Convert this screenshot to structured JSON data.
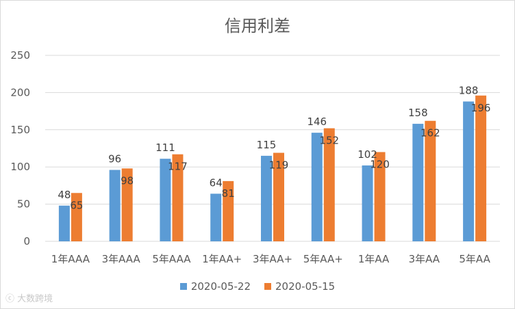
{
  "chart_data": {
    "type": "bar",
    "title": "信用利差",
    "categories": [
      "1年AAA",
      "3年AAA",
      "5年AAA",
      "1年AA+",
      "3年AA+",
      "5年AA+",
      "1年AA",
      "3年AA",
      "5年AA"
    ],
    "series": [
      {
        "name": "2020-05-22",
        "color": "#5b9bd5",
        "values": [
          48,
          96,
          111,
          64,
          115,
          146,
          102,
          158,
          188
        ]
      },
      {
        "name": "2020-05-15",
        "color": "#ed7d31",
        "values": [
          65,
          98,
          117,
          81,
          119,
          152,
          120,
          162,
          196
        ]
      }
    ],
    "ylim": [
      0,
      250
    ],
    "yticks": [
      0,
      50,
      100,
      150,
      200,
      250
    ],
    "grid": true,
    "legend_position": "bottom"
  },
  "watermark": "大数跨境"
}
